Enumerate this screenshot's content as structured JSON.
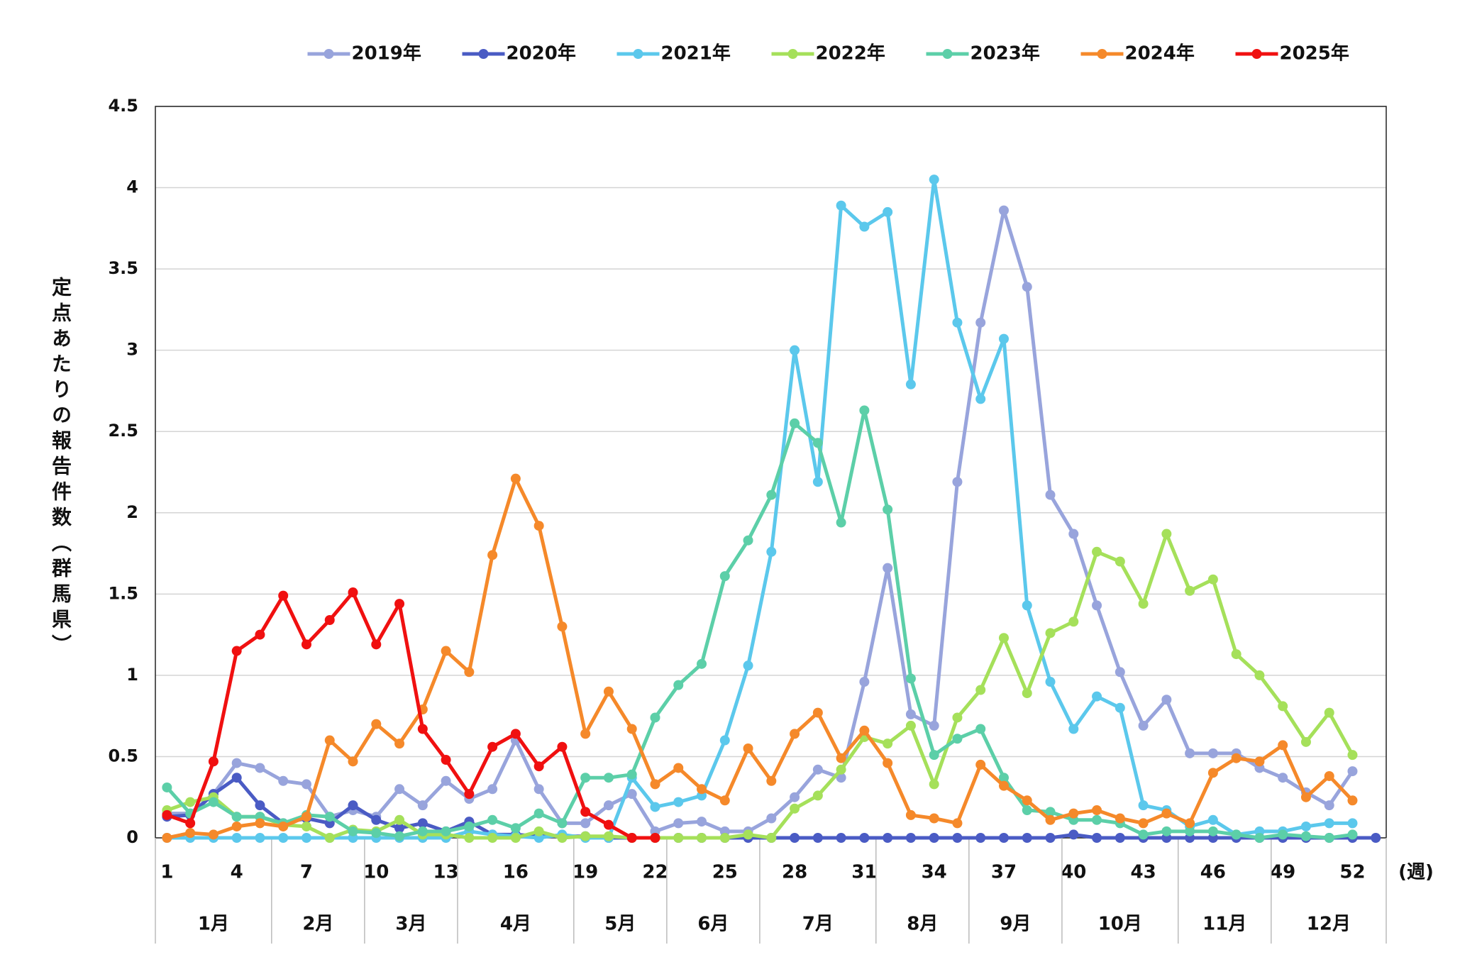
{
  "chart_data": {
    "type": "line",
    "y_label": "定点あたりの報告件数（群馬県）",
    "x_label": "(週)",
    "legend": "top",
    "grid": true,
    "x": [
      1,
      2,
      3,
      4,
      5,
      6,
      7,
      8,
      9,
      10,
      11,
      12,
      13,
      14,
      15,
      16,
      17,
      18,
      19,
      20,
      21,
      22,
      23,
      24,
      25,
      26,
      27,
      28,
      29,
      30,
      31,
      32,
      33,
      34,
      35,
      36,
      37,
      38,
      39,
      40,
      41,
      42,
      43,
      44,
      45,
      46,
      47,
      48,
      49,
      50,
      51,
      52,
      53
    ],
    "xlim": [
      0.5,
      53.45
    ],
    "xticks": [
      1,
      4,
      7,
      10,
      13,
      16,
      19,
      22,
      25,
      28,
      31,
      34,
      37,
      40,
      43,
      46,
      49,
      52
    ],
    "ylim": [
      0,
      4.5
    ],
    "yticks": [
      0,
      0.5,
      1,
      1.5,
      2,
      2.5,
      3,
      3.5,
      4,
      4.5
    ],
    "months": {
      "labels": [
        "1月",
        "2月",
        "3月",
        "4月",
        "5月",
        "6月",
        "7月",
        "8月",
        "9月",
        "10月",
        "11月",
        "12月"
      ],
      "bounds": [
        0.5,
        5.5,
        9.5,
        13.5,
        18.5,
        22.5,
        26.5,
        31.5,
        35.5,
        39.5,
        44.5,
        48.5,
        53.45
      ]
    },
    "series": [
      {
        "name": "2019年",
        "color": "#98a4dc",
        "values": [
          0.15,
          0.15,
          0.27,
          0.46,
          0.43,
          0.35,
          0.33,
          0.13,
          0.17,
          0.13,
          0.3,
          0.2,
          0.35,
          0.24,
          0.3,
          0.6,
          0.3,
          0.09,
          0.09,
          0.2,
          0.27,
          0.04,
          0.09,
          0.1,
          0.04,
          0.04,
          0.12,
          0.25,
          0.42,
          0.37,
          0.96,
          1.66,
          0.76,
          0.69,
          2.19,
          3.17,
          3.86,
          3.39,
          2.11,
          1.87,
          1.43,
          1.02,
          0.69,
          0.85,
          0.52,
          0.52,
          0.52,
          0.43,
          0.37,
          0.28,
          0.2,
          0.41,
          null
        ]
      },
      {
        "name": "2020年",
        "color": "#4a5bc4",
        "values": [
          0.13,
          0.14,
          0.27,
          0.37,
          0.2,
          0.09,
          0.12,
          0.09,
          0.2,
          0.11,
          0.06,
          0.09,
          0.04,
          0.1,
          0.02,
          0.02,
          0.01,
          0.01,
          0.01,
          0,
          0,
          0,
          0,
          0,
          0,
          0,
          0,
          0,
          0,
          0,
          0,
          0,
          0,
          0,
          0,
          0,
          0,
          0,
          0,
          0.02,
          0,
          0,
          0,
          0,
          0,
          0,
          0,
          0,
          0,
          0,
          0,
          0,
          0
        ]
      },
      {
        "name": "2021年",
        "color": "#5bc8ec",
        "values": [
          0,
          0,
          0,
          0,
          0,
          0,
          0,
          0,
          0,
          0,
          0,
          0,
          0,
          0.04,
          0.02,
          0.01,
          0,
          0.02,
          0,
          0,
          0.37,
          0.19,
          0.22,
          0.26,
          0.6,
          1.06,
          1.76,
          3.0,
          2.19,
          3.89,
          3.76,
          3.85,
          2.79,
          4.05,
          3.17,
          2.7,
          3.07,
          1.43,
          0.96,
          0.67,
          0.87,
          0.8,
          0.2,
          0.17,
          0.07,
          0.11,
          0.02,
          0.04,
          0.04,
          0.07,
          0.09,
          0.09,
          null
        ]
      },
      {
        "name": "2022年",
        "color": "#a5e05a",
        "values": [
          0.17,
          0.22,
          0.25,
          0.13,
          0.13,
          0.08,
          0.07,
          0,
          0.05,
          0.04,
          0.11,
          0.02,
          0.02,
          0,
          0,
          0,
          0.04,
          0,
          0.01,
          0.01,
          0,
          0,
          0,
          0,
          0,
          0.02,
          0,
          0.18,
          0.26,
          0.42,
          0.62,
          0.58,
          0.69,
          0.33,
          0.74,
          0.91,
          1.23,
          0.89,
          1.26,
          1.33,
          1.76,
          1.7,
          1.44,
          1.87,
          1.52,
          1.59,
          1.13,
          1.0,
          0.81,
          0.59,
          0.77,
          0.51,
          null
        ]
      },
      {
        "name": "2023年",
        "color": "#5ccfa8",
        "values": [
          0.31,
          0.15,
          0.22,
          0.13,
          0.13,
          0.09,
          0.14,
          0.13,
          0.04,
          0.03,
          0.01,
          0.04,
          0.04,
          0.07,
          0.11,
          0.06,
          0.15,
          0.09,
          0.37,
          0.37,
          0.39,
          0.74,
          0.94,
          1.07,
          1.61,
          1.83,
          2.11,
          2.55,
          2.43,
          1.94,
          2.63,
          2.02,
          0.98,
          0.51,
          0.61,
          0.67,
          0.37,
          0.17,
          0.16,
          0.11,
          0.11,
          0.09,
          0.02,
          0.04,
          0.04,
          0.04,
          0.02,
          0,
          0.02,
          0.01,
          0,
          0.02,
          null
        ]
      },
      {
        "name": "2024年",
        "color": "#f5892a",
        "values": [
          0,
          0.03,
          0.02,
          0.07,
          0.09,
          0.07,
          0.13,
          0.6,
          0.47,
          0.7,
          0.58,
          0.79,
          1.15,
          1.02,
          1.74,
          2.21,
          1.92,
          1.3,
          0.64,
          0.9,
          0.67,
          0.33,
          0.43,
          0.3,
          0.23,
          0.55,
          0.35,
          0.64,
          0.77,
          0.49,
          0.66,
          0.46,
          0.14,
          0.12,
          0.09,
          0.45,
          0.32,
          0.23,
          0.11,
          0.15,
          0.17,
          0.12,
          0.09,
          0.15,
          0.09,
          0.4,
          0.49,
          0.47,
          0.57,
          0.25,
          0.38,
          0.23,
          null
        ]
      },
      {
        "name": "2025年",
        "color": "#f01010",
        "values": [
          0.14,
          0.09,
          0.47,
          1.15,
          1.25,
          1.49,
          1.19,
          1.34,
          1.51,
          1.19,
          1.44,
          0.67,
          0.48,
          0.27,
          0.56,
          0.64,
          0.44,
          0.56,
          0.16,
          0.08,
          0,
          0,
          null,
          null,
          null,
          null,
          null,
          null,
          null,
          null,
          null,
          null,
          null,
          null,
          null,
          null,
          null,
          null,
          null,
          null,
          null,
          null,
          null,
          null,
          null,
          null,
          null,
          null,
          null,
          null,
          null,
          null,
          null
        ]
      }
    ]
  }
}
